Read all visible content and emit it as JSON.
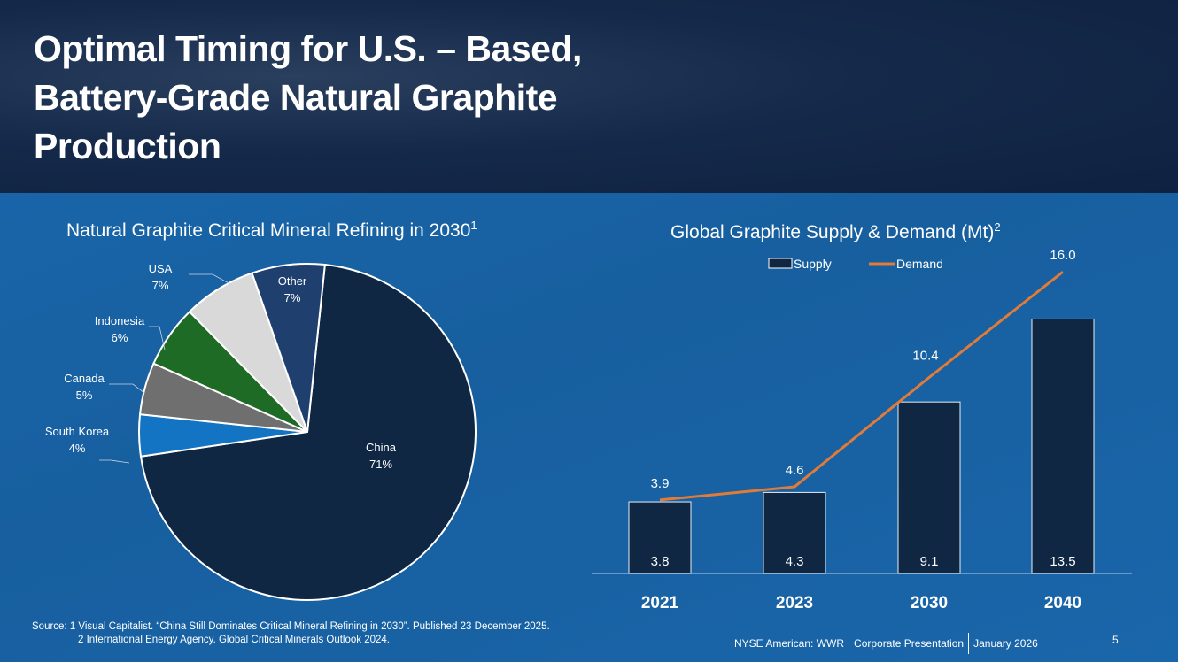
{
  "title": "Optimal Timing for U.S. – Based, Battery-Grade Natural Graphite Production",
  "title_lines": [
    "Optimal Timing for U.S. – Based,",
    "Battery-Grade Natural Graphite",
    "Production"
  ],
  "colors": {
    "header": "#13274a",
    "background": "#1765a8",
    "supply": "#0f2743",
    "demand": "#e07b39"
  },
  "chart_data": [
    {
      "type": "pie",
      "title": "Natural Graphite Critical Mineral Refining in 2030",
      "title_sup": "1",
      "slices": [
        {
          "label": "China",
          "value": 71,
          "pct": "71%",
          "color": "#0f2743"
        },
        {
          "label": "South Korea",
          "value": 4,
          "pct": "4%",
          "color": "#1474c4"
        },
        {
          "label": "Canada",
          "value": 5,
          "pct": "5%",
          "color": "#6f6f6f"
        },
        {
          "label": "Indonesia",
          "value": 6,
          "pct": "6%",
          "color": "#1e6b25"
        },
        {
          "label": "USA",
          "value": 7,
          "pct": "7%",
          "color": "#d9d9d9"
        },
        {
          "label": "Other",
          "value": 7,
          "pct": "7%",
          "color": "#1f3f6e"
        }
      ]
    },
    {
      "type": "bar",
      "title": "Global Graphite Supply & Demand (Mt)",
      "title_sup": "2",
      "categories": [
        "2021",
        "2023",
        "2030",
        "2040"
      ],
      "series": [
        {
          "name": "Supply",
          "type": "bar",
          "values": [
            3.8,
            4.3,
            9.1,
            13.5
          ],
          "labels": [
            "3.8",
            "4.3",
            "9.1",
            "13.5"
          ]
        },
        {
          "name": "Demand",
          "type": "line",
          "values": [
            3.9,
            4.6,
            10.4,
            16.0
          ],
          "labels": [
            "3.9",
            "4.6",
            "10.4",
            "16.0"
          ]
        }
      ],
      "ylim": [
        0,
        17
      ],
      "grid": false,
      "legend": "top"
    }
  ],
  "footer": {
    "source_line1": "Source: 1 Visual Capitalist. “China Still Dominates Critical Mineral Refining in 2030”. Published 23 December 2025.",
    "source_line2": "2 International Energy Agency. Global Critical Minerals Outlook 2024.",
    "exchange": "NYSE American: WWR",
    "doc": "Corporate Presentation",
    "date": "January 2026",
    "page": "5"
  }
}
